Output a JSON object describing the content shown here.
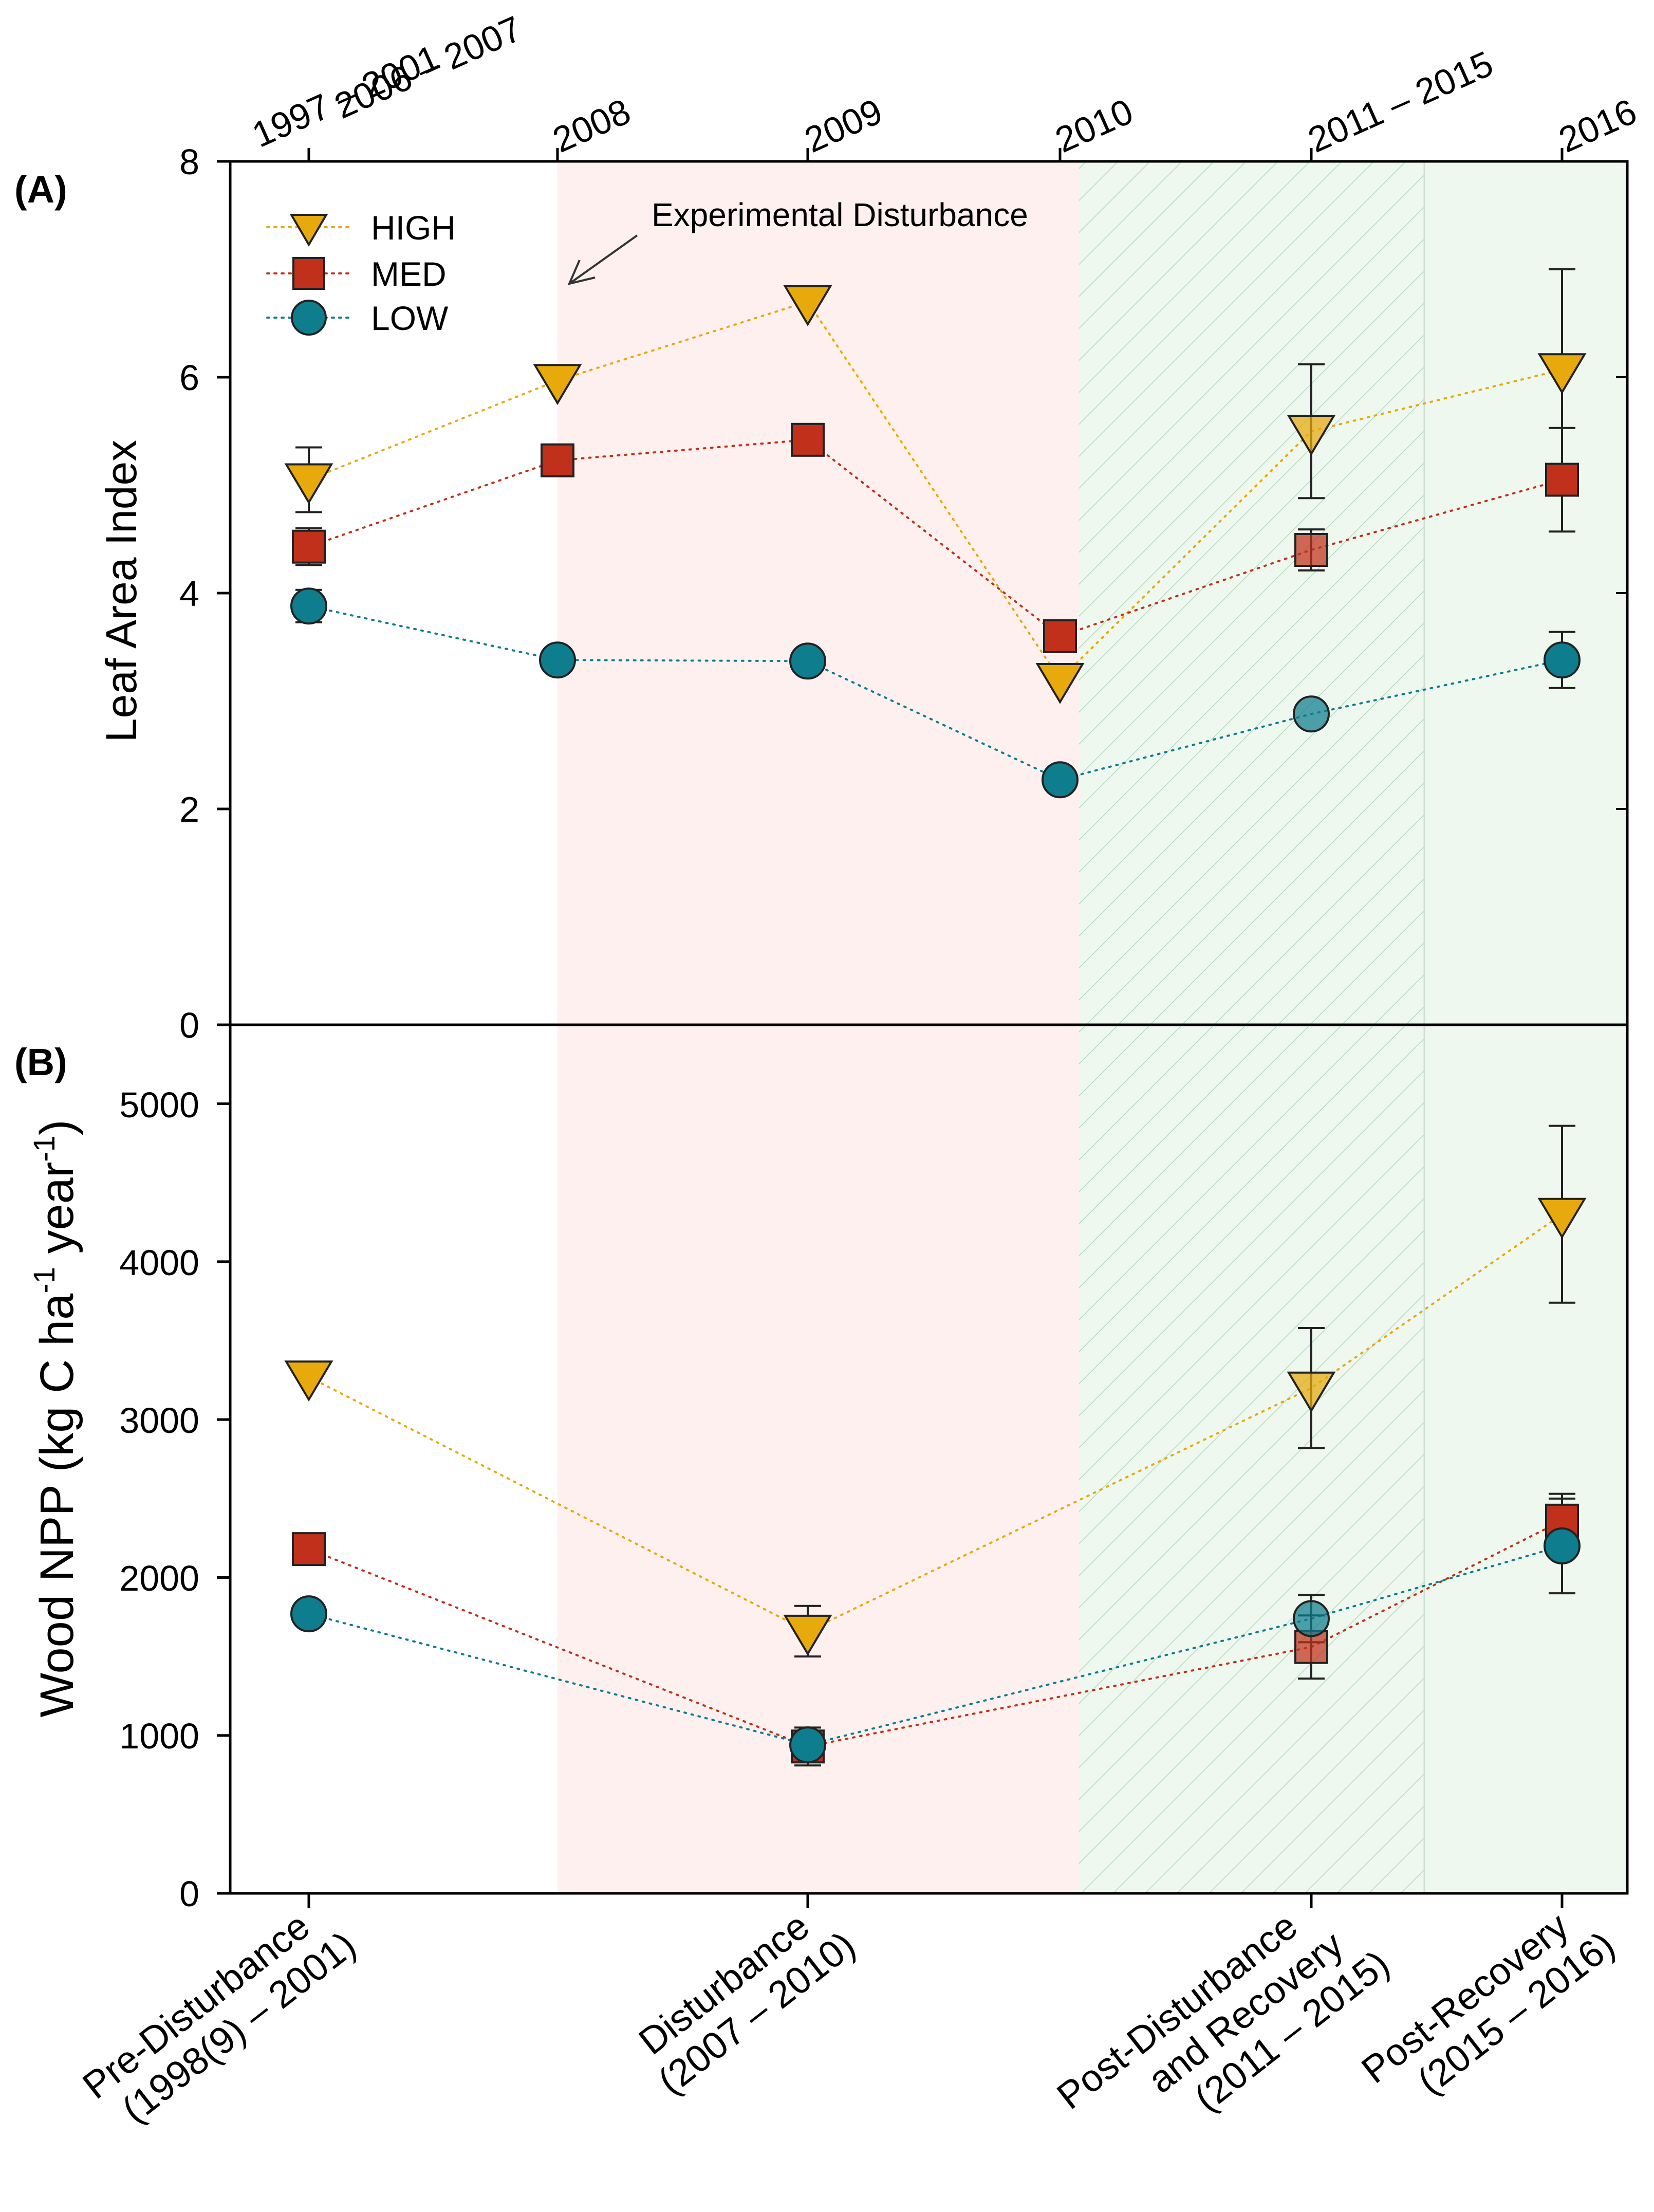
{
  "chart_data": [
    {
      "type": "line",
      "panel_label": "(A)",
      "ylabel": "Leaf Area Index",
      "ylim": [
        0,
        8
      ],
      "yticks": [
        "0",
        "2",
        "4",
        "6",
        "8"
      ],
      "top_axis_labels": [
        "1997 – 2001",
        "2006 – 2007",
        "2008",
        "2009",
        "2010",
        "2011 – 2015",
        "2016"
      ],
      "annotation": "Experimental Disturbance",
      "x": [
        1,
        2,
        3,
        4,
        5,
        6
      ],
      "series": [
        {
          "name": "HIGH",
          "marker": "triangle-down",
          "color": "#E8A90C",
          "values": [
            5.05,
            5.97,
            6.7,
            3.2,
            5.5,
            6.07
          ],
          "errors": [
            0.3,
            0,
            0,
            0,
            0.62,
            0.93
          ]
        },
        {
          "name": "MED",
          "marker": "square",
          "color": "#C0301A",
          "values": [
            4.43,
            5.23,
            5.42,
            3.6,
            4.4,
            5.05
          ],
          "errors": [
            0.17,
            0,
            0,
            0,
            0.19,
            0.48
          ]
        },
        {
          "name": "LOW",
          "marker": "circle",
          "color": "#0E7D8E",
          "values": [
            3.88,
            3.38,
            3.37,
            2.27,
            2.88,
            3.38
          ],
          "errors": [
            0.15,
            0,
            0,
            0,
            0,
            0.26
          ]
        }
      ]
    },
    {
      "type": "line",
      "panel_label": "(B)",
      "ylabel": "Wood NPP (kg C ha",
      "ylabel_sup1": "-1",
      "ylabel_mid": " year",
      "ylabel_sup2": "-1",
      "ylabel_end": ")",
      "ylim": [
        0,
        5500
      ],
      "yticks": [
        "0",
        "1000",
        "2000",
        "3000",
        "4000",
        "5000"
      ],
      "x": [
        1,
        3,
        5,
        6
      ],
      "categories": [
        {
          "line1": "Pre-Disturbance",
          "line2": "(1998(9) – 2001)"
        },
        {
          "line1": "Disturbance",
          "line2": "(2007 – 2010)"
        },
        {
          "line1": "Post-Disturbance",
          "line1b": "and Recovery",
          "line2": "(2011 – 2015)"
        },
        {
          "line1": "Post-Recovery",
          "line2": "(2015 – 2016)"
        }
      ],
      "series": [
        {
          "name": "HIGH",
          "values": [
            3270,
            1660,
            3200,
            4300
          ],
          "errors": [
            0,
            160,
            380,
            560
          ]
        },
        {
          "name": "MED",
          "values": [
            2180,
            930,
            1560,
            2360
          ],
          "errors": [
            0,
            120,
            200,
            170
          ]
        },
        {
          "name": "LOW",
          "values": [
            1770,
            940,
            1740,
            2200
          ],
          "errors": [
            0,
            90,
            150,
            300
          ]
        }
      ]
    }
  ],
  "colors": {
    "high": "#E8A90C",
    "med": "#C0301A",
    "low": "#0E7D8E",
    "disturbance_band": "#FDF0EE",
    "recovery_band": "#EEF8EE",
    "hatch": "#B8D8C0"
  }
}
